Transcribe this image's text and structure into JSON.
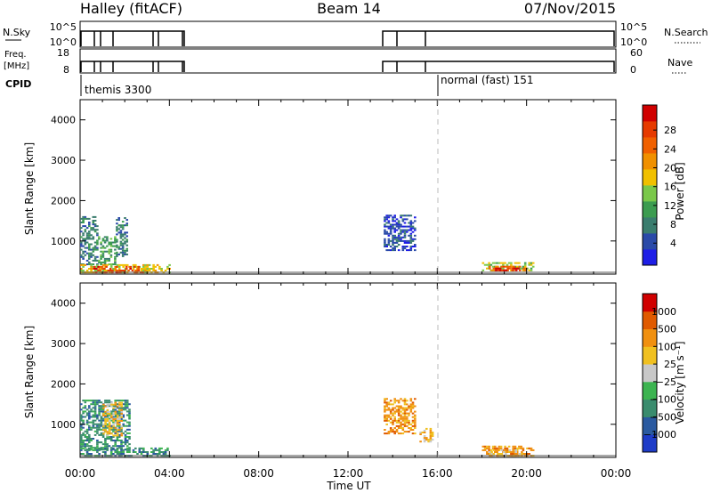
{
  "header": {
    "station": "Halley (fitACF)",
    "beam": "Beam 14",
    "date": "07/Nov/2015"
  },
  "top_panels": {
    "nsky_label": "N.Sky",
    "nsky_ticks": [
      "10^5",
      "10^0"
    ],
    "nsearch_label": "N.Search",
    "nsearch_ticks": [
      "10^5",
      "10^0"
    ],
    "freq_label_1": "Freq.",
    "freq_label_2": "[MHz]",
    "freq_ticks": [
      "18",
      "8"
    ],
    "nave_label": "Nave",
    "nave_ticks": [
      "60",
      "0"
    ],
    "cpid_label": "CPID",
    "cpid_entries": [
      {
        "text": "themis 3300",
        "start_hour": 0.0
      },
      {
        "text": "normal (fast) 151",
        "start_hour": 16.0
      }
    ]
  },
  "x_axis": {
    "label": "Time UT",
    "ticks": [
      "00:00",
      "04:00",
      "08:00",
      "12:00",
      "16:00",
      "20:00",
      "00:00"
    ]
  },
  "chart_data": [
    {
      "type": "heatmap",
      "panel": "power",
      "ylabel": "Slant Range [km]",
      "y_ticks": [
        "1000",
        "2000",
        "3000",
        "4000"
      ],
      "xlim_hours": [
        0,
        24
      ],
      "ylim_km": [
        180,
        4500
      ],
      "colorbar": {
        "label": "Power [dB]",
        "ticks": [
          "4",
          "8",
          "12",
          "16",
          "20",
          "24",
          "28"
        ],
        "colors": [
          "#1e1ee6",
          "#2a4aa8",
          "#3a7d6e",
          "#3c9c50",
          "#7ac84a",
          "#f0c000",
          "#f09000",
          "#f06000",
          "#e63a00",
          "#d00000"
        ]
      },
      "regions": [
        {
          "t0": 0.0,
          "t1": 0.8,
          "r0": 400,
          "r1": 1600,
          "level": 2
        },
        {
          "t0": 0.8,
          "t1": 1.6,
          "r0": 400,
          "r1": 1100,
          "level": 3
        },
        {
          "t0": 1.6,
          "t1": 2.1,
          "r0": 600,
          "r1": 1550,
          "level": 2
        },
        {
          "t0": 0.0,
          "t1": 4.0,
          "r0": 200,
          "r1": 400,
          "level": 5
        },
        {
          "t0": 0.5,
          "t1": 2.8,
          "r0": 200,
          "r1": 350,
          "level": 8
        },
        {
          "t0": 13.6,
          "t1": 15.0,
          "r0": 750,
          "r1": 1650,
          "level": 1
        },
        {
          "t0": 18.0,
          "t1": 20.3,
          "r0": 250,
          "r1": 450,
          "level": 4
        },
        {
          "t0": 18.3,
          "t1": 20.0,
          "r0": 250,
          "r1": 380,
          "level": 7
        },
        {
          "t0": 18.5,
          "t1": 19.6,
          "r0": 250,
          "r1": 330,
          "level": 9
        }
      ]
    },
    {
      "type": "heatmap",
      "panel": "velocity",
      "ylabel": "Slant Range [km]",
      "y_ticks": [
        "1000",
        "2000",
        "3000",
        "4000"
      ],
      "xlim_hours": [
        0,
        24
      ],
      "ylim_km": [
        180,
        4500
      ],
      "colorbar": {
        "label": "Velocity [m s⁻¹]",
        "ticks": [
          "1000",
          "500",
          "100",
          "25",
          "−25",
          "−100",
          "−500",
          "−1000"
        ],
        "colors": [
          "#1e3cc8",
          "#2a5aa0",
          "#3a8c6e",
          "#3cb450",
          "#c8c8c8",
          "#f0c020",
          "#f09010",
          "#e05a00",
          "#d00000"
        ]
      },
      "regions": [
        {
          "t0": 0.0,
          "t1": 2.2,
          "r0": 350,
          "r1": 1600,
          "level": 2
        },
        {
          "t0": 0.0,
          "t1": 4.0,
          "r0": 200,
          "r1": 400,
          "level": 2
        },
        {
          "t0": 1.0,
          "t1": 1.9,
          "r0": 700,
          "r1": 1550,
          "level": 5
        },
        {
          "t0": 13.6,
          "t1": 15.0,
          "r0": 750,
          "r1": 1650,
          "level": 6
        },
        {
          "t0": 15.2,
          "t1": 15.8,
          "r0": 550,
          "r1": 900,
          "level": 5
        },
        {
          "t0": 18.0,
          "t1": 20.3,
          "r0": 200,
          "r1": 450,
          "level": 6
        },
        {
          "t0": 18.3,
          "t1": 19.8,
          "r0": 200,
          "r1": 350,
          "level": 5
        }
      ]
    }
  ]
}
